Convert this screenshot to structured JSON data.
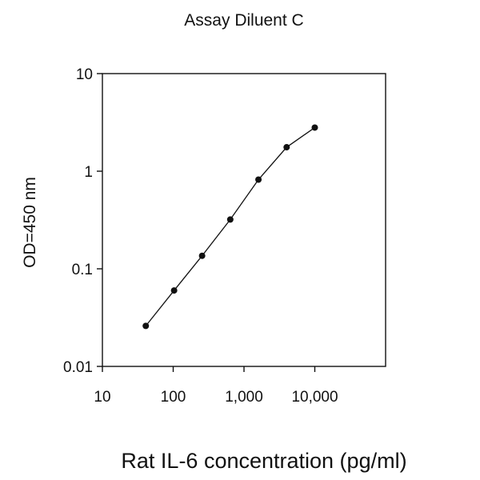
{
  "chart_data": {
    "type": "line",
    "title": "Assay Diluent C",
    "xlabel": "Rat IL-6 concentration (pg/ml)",
    "ylabel": "OD=450 nm",
    "x_scale": "log",
    "y_scale": "log",
    "xlim": [
      10,
      100000
    ],
    "ylim": [
      0.01,
      10
    ],
    "x_ticks": [
      10,
      100,
      1000,
      10000
    ],
    "x_tick_labels": [
      "10",
      "100",
      "1,000",
      "10,000"
    ],
    "y_ticks": [
      0.01,
      0.1,
      1,
      10
    ],
    "y_tick_labels": [
      "0.01",
      "0.1",
      "1",
      "10"
    ],
    "grid": false,
    "series": [
      {
        "x": [
          41,
          103,
          256,
          640,
          1600,
          4000,
          10000
        ],
        "y": [
          0.026,
          0.06,
          0.136,
          0.32,
          0.82,
          1.76,
          2.8
        ],
        "color": "#111111"
      }
    ]
  }
}
